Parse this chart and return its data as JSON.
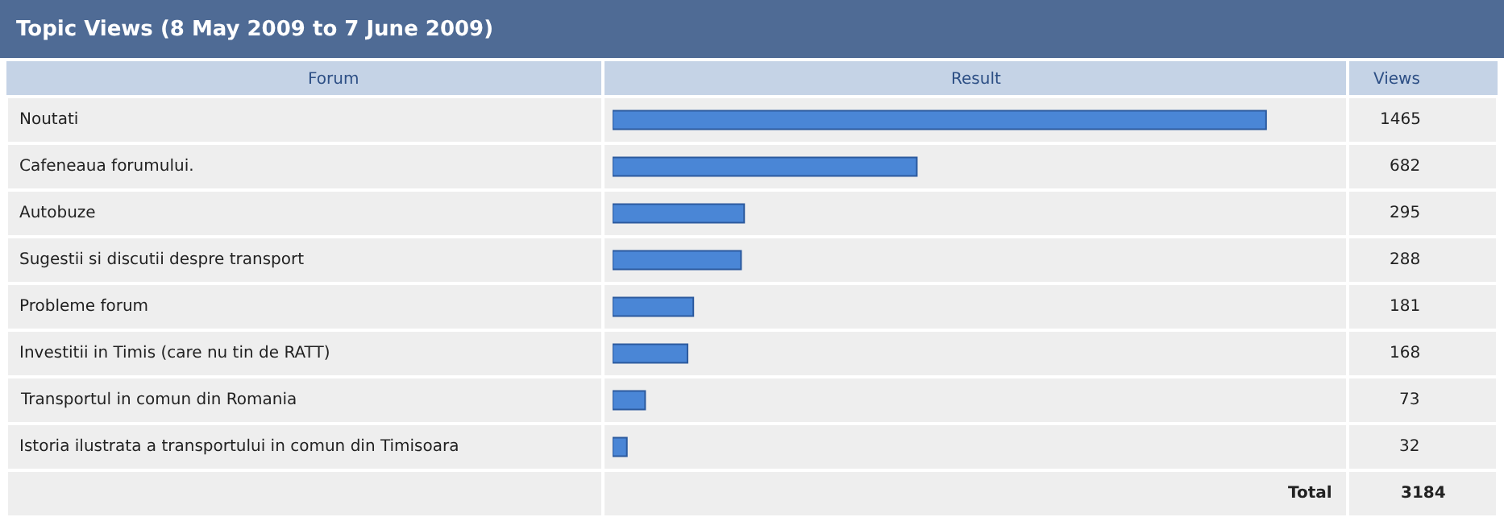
{
  "chart_data": {
    "type": "bar",
    "orientation": "horizontal",
    "title": "Topic Views (8 May 2009 to 7 June 2009)",
    "categories": [
      "Noutati",
      "Cafeneaua forumului.",
      "Autobuze",
      "Sugestii si discutii despre transport",
      "Probleme forum",
      "Investitii in Timis (care nu tin de RATT)",
      "Transportul in comun din Romania",
      "Istoria ilustrata a transportului in comun din Timisoara"
    ],
    "values": [
      1465,
      682,
      295,
      288,
      181,
      168,
      73,
      32
    ],
    "color": "#4a86d6",
    "data_labels": true,
    "legend": false,
    "annotations": [
      "Forum",
      "Result",
      "Views",
      "Total",
      "3184"
    ]
  }
}
